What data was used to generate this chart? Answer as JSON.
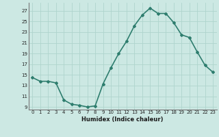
{
  "x": [
    0,
    1,
    2,
    3,
    4,
    5,
    6,
    7,
    8,
    9,
    10,
    11,
    12,
    13,
    14,
    15,
    16,
    17,
    18,
    19,
    20,
    21,
    22,
    23
  ],
  "y": [
    14.5,
    13.8,
    13.8,
    13.5,
    10.3,
    9.5,
    9.3,
    9.0,
    9.2,
    13.3,
    16.3,
    19.0,
    21.3,
    24.2,
    26.2,
    27.5,
    26.5,
    26.5,
    24.8,
    22.5,
    22.0,
    19.3,
    16.8,
    15.5
  ],
  "line_color": "#2e7d6e",
  "bg_color": "#cce8e3",
  "grid_color": "#afd4cd",
  "xlabel": "Humidex (Indice chaleur)",
  "ylabel_ticks": [
    9,
    11,
    13,
    15,
    17,
    19,
    21,
    23,
    25,
    27
  ],
  "ylim": [
    8.5,
    28.5
  ],
  "xlim": [
    -0.5,
    23.5
  ],
  "marker": "D",
  "markersize": 2,
  "linewidth": 1.2,
  "tick_fontsize": 5.0,
  "xlabel_fontsize": 6.0
}
